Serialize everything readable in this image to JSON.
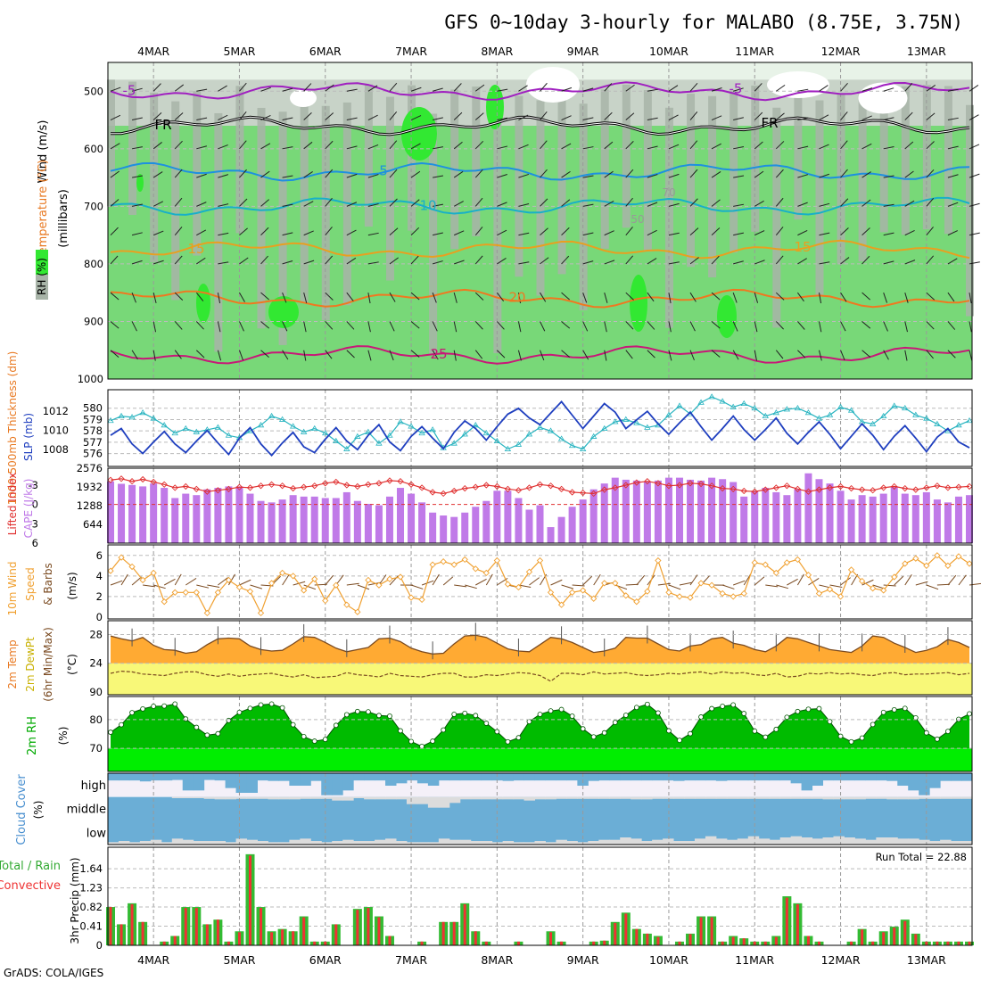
{
  "title": "GFS 0~10day 3-hourly for MALABO (8.75E, 3.75N)",
  "footer": "GrADS: COLA/IGES",
  "dates": [
    "4MAR",
    "5MAR",
    "6MAR",
    "7MAR",
    "8MAR",
    "9MAR",
    "10MAR",
    "11MAR",
    "12MAR",
    "13MAR"
  ],
  "colors": {
    "rh_light": "#e8f3e8",
    "rh_mid": "#c8d3c8",
    "rh_dark": "#a8b4a8",
    "rh_green": "#78d878",
    "rh_bright": "#32e832",
    "temp_purple": "#a020c0",
    "temp_black": "#000000",
    "temp_blue": "#1e90e0",
    "temp_cyan": "#18b0c8",
    "temp_orange": "#e8a020",
    "temp_dorange": "#f07820",
    "temp_magenta": "#c81878",
    "slp": "#1f3fbf",
    "thickness": "#28b4c0",
    "lifted": "#e03030",
    "cape": "#c07ae8",
    "wind": "#f0a030",
    "temp_fill": "#ffaa33",
    "dewpt_fill": "#f8f878",
    "rh2m": "#00bb00",
    "rh2m_light": "#00ee00",
    "cloud": "#6baed6",
    "precip_total": "#33bb33",
    "precip_conv": "#ee3333"
  },
  "upper_panel": {
    "ylabel_wind": "Wind (m/s)",
    "ylabel_temp": "Temperature (°C)",
    "ylabel_p": "(millibars)",
    "rh_label": "RH (%)",
    "p_ticks": [
      "500",
      "600",
      "700",
      "800",
      "900",
      "1000"
    ],
    "contours": [
      {
        "label": "-5",
        "level": 500
      },
      {
        "label": "FR",
        "level": 560
      },
      {
        "label": "5",
        "level": 640
      },
      {
        "label": "10",
        "level": 700
      },
      {
        "label": "15",
        "level": 775
      },
      {
        "label": "20",
        "level": 860
      },
      {
        "label": "25",
        "level": 958
      }
    ],
    "rh_shading_labels": [
      "50",
      "70"
    ]
  },
  "slp_panel": {
    "ylabel_thick": "1000-500mb Thickness (dm)",
    "ylabel_slp": "SLP (mb)",
    "left_ticks": [
      "580",
      "579",
      "578",
      "577",
      "576"
    ],
    "right_ticks": [
      "1012",
      "1010",
      "1008"
    ]
  },
  "cape_panel": {
    "ylabel_li": "Lifted Index",
    "ylabel_cape": "CAPE (J/kg)",
    "left_ticks": [
      "-3",
      "0",
      "3",
      "6"
    ],
    "right_ticks": [
      "2576",
      "1932",
      "1288",
      "644"
    ]
  },
  "wind_panel": {
    "ylabel_1": "10m Wind",
    "ylabel_2": "Speed",
    "ylabel_3": "& Barbs",
    "unit": "(m/s)",
    "ticks": [
      "6",
      "4",
      "2",
      "0"
    ]
  },
  "temp_panel": {
    "ylabel_1": "2m Temp",
    "ylabel_2": "2m DewPt",
    "ylabel_3": "(6hr Min/Max)",
    "unit": "(°C)",
    "ticks": [
      "28",
      "24",
      "90"
    ]
  },
  "rh_panel": {
    "ylabel": "2m RH",
    "unit": "(%)",
    "ticks": [
      "80",
      "70"
    ]
  },
  "cloud_panel": {
    "ylabel": "Cloud Cover",
    "unit": "(%)",
    "levels": [
      "high",
      "middle",
      "low"
    ]
  },
  "precip_panel": {
    "ylabel_1": "Total / Rain",
    "ylabel_2": "Convective",
    "ylabel_3": "3hr Precip (mm)",
    "ticks": [
      "1.64",
      "1.23",
      "0.82",
      "0.41",
      "0"
    ],
    "run_total": "Run Total = 22.88"
  },
  "chart_data": {
    "type": "meteogram",
    "x_start": "2022-03-03 12Z",
    "step_hours": 3,
    "n_steps": 81,
    "slp_mb": [
      1009.5,
      1010.2,
      1008.6,
      1007.6,
      1008.8,
      1009.9,
      1008.6,
      1007.7,
      1008.9,
      1010.0,
      1008.7,
      1007.5,
      1009.2,
      1010.3,
      1008.6,
      1007.4,
      1008.7,
      1009.8,
      1008.3,
      1007.7,
      1009.1,
      1010.3,
      1008.9,
      1008.0,
      1009.5,
      1010.6,
      1008.8,
      1007.9,
      1009.4,
      1010.4,
      1009.2,
      1008.1,
      1009.8,
      1011.0,
      1010.2,
      1009.0,
      1010.4,
      1011.7,
      1012.3,
      1011.3,
      1010.6,
      1011.8,
      1013.0,
      1011.6,
      1010.2,
      1011.5,
      1012.8,
      1011.9,
      1010.2,
      1011.1,
      1012.0,
      1010.7,
      1009.6,
      1010.8,
      1011.9,
      1010.4,
      1009.0,
      1010.2,
      1011.5,
      1010.1,
      1009.0,
      1010.1,
      1011.3,
      1009.7,
      1008.6,
      1009.8,
      1010.9,
      1009.6,
      1008.1,
      1009.4,
      1010.7,
      1009.5,
      1008.0,
      1009.4,
      1010.5,
      1009.2,
      1007.8,
      1009.3,
      1010.2,
      1008.8,
      1008.2
    ],
    "thickness_dm": [
      578.9,
      579.3,
      579.2,
      579.6,
      579.1,
      578.5,
      577.8,
      578.2,
      577.9,
      578.1,
      578.3,
      577.6,
      577.4,
      578.0,
      578.5,
      579.3,
      579.0,
      578.4,
      577.9,
      578.2,
      577.8,
      577.1,
      576.4,
      577.5,
      577.9,
      576.9,
      577.6,
      578.8,
      578.4,
      577.8,
      578.1,
      576.5,
      576.9,
      577.7,
      578.5,
      577.8,
      577.1,
      576.4,
      576.8,
      577.7,
      578.3,
      578.0,
      577.3,
      576.7,
      576.4,
      577.5,
      578.2,
      578.8,
      579.0,
      578.7,
      578.3,
      578.5,
      579.4,
      580.2,
      579.5,
      580.5,
      581.0,
      580.6,
      580.1,
      580.4,
      580.0,
      579.3,
      579.6,
      579.9,
      580.0,
      579.6,
      579.1,
      579.4,
      580.1,
      579.8,
      578.8,
      578.6,
      579.3,
      580.2,
      580.0,
      579.4,
      579.1,
      578.6,
      578.0,
      578.5,
      578.9
    ],
    "lifted_index": [
      -3.8,
      -4.0,
      -3.6,
      -3.9,
      -3.5,
      -3.1,
      -2.6,
      -2.8,
      -2.4,
      -2.0,
      -2.2,
      -2.4,
      -2.7,
      -2.6,
      -2.9,
      -3.1,
      -2.9,
      -2.5,
      -2.7,
      -2.9,
      -3.3,
      -3.5,
      -3.0,
      -2.8,
      -3.1,
      -3.3,
      -3.7,
      -3.6,
      -3.1,
      -2.6,
      -1.9,
      -1.7,
      -2.1,
      -2.5,
      -2.7,
      -3.0,
      -2.8,
      -2.4,
      -2.2,
      -2.6,
      -3.1,
      -2.9,
      -2.4,
      -1.9,
      -1.8,
      -1.7,
      -2.3,
      -2.6,
      -3.0,
      -3.4,
      -3.6,
      -3.3,
      -2.9,
      -3.0,
      -3.3,
      -3.2,
      -2.9,
      -2.5,
      -2.4,
      -2.1,
      -2.0,
      -2.3,
      -2.6,
      -2.9,
      -2.4,
      -2.0,
      -2.3,
      -2.6,
      -2.8,
      -2.5,
      -2.3,
      -2.2,
      -2.6,
      -2.8,
      -2.5,
      -2.3,
      -2.6,
      -2.9,
      -2.6,
      -2.7,
      -2.8
    ],
    "cape_jkg": [
      2120,
      2040,
      2000,
      1950,
      2050,
      1900,
      1550,
      1700,
      1650,
      1850,
      1900,
      1950,
      1950,
      1700,
      1450,
      1400,
      1500,
      1650,
      1600,
      1600,
      1550,
      1550,
      1750,
      1450,
      1350,
      1300,
      1600,
      1900,
      1700,
      1400,
      1050,
      950,
      900,
      1050,
      1250,
      1450,
      1800,
      1800,
      1550,
      1150,
      1300,
      550,
      900,
      1250,
      1500,
      1850,
      2050,
      2250,
      2180,
      2150,
      2120,
      2150,
      2250,
      2250,
      2180,
      2150,
      2250,
      2200,
      2100,
      1600,
      1800,
      1900,
      1750,
      1650,
      1850,
      2400,
      2200,
      2050,
      1800,
      1500,
      1650,
      1600,
      1700,
      1950,
      1700,
      1650,
      1750,
      1500,
      1400,
      1600,
      1650
    ],
    "wind_speed_ms": [
      4.5,
      5.8,
      4.9,
      3.6,
      4.3,
      1.5,
      2.4,
      2.4,
      2.4,
      0.4,
      2.4,
      3.6,
      2.9,
      2.5,
      0.4,
      3.3,
      4.3,
      4.0,
      2.6,
      3.7,
      1.6,
      3.1,
      1.2,
      0.5,
      3.6,
      3.1,
      3.7,
      3.9,
      1.9,
      1.7,
      5.1,
      5.4,
      5.1,
      5.6,
      4.7,
      4.3,
      5.5,
      3.2,
      2.9,
      4.4,
      5.5,
      2.4,
      1.2,
      2.4,
      2.6,
      1.8,
      3.3,
      3.3,
      2.1,
      1.5,
      2.5,
      5.5,
      2.4,
      2.0,
      1.9,
      3.3,
      3.1,
      2.3,
      2.0,
      2.3,
      5.3,
      5.1,
      4.3,
      5.3,
      5.6,
      4.1,
      2.3,
      2.7,
      2.0,
      4.6,
      3.5,
      2.8,
      2.6,
      3.9,
      5.2,
      5.7,
      5.0,
      6.0,
      5.0,
      5.9,
      5.2
    ],
    "temp_c": [
      27.8,
      27.4,
      27.1,
      27.6,
      26.5,
      25.9,
      25.8,
      25.4,
      25.6,
      26.6,
      27.4,
      27.5,
      27.4,
      26.4,
      25.9,
      25.7,
      25.8,
      26.7,
      27.7,
      27.6,
      26.9,
      26.1,
      25.6,
      25.9,
      26.2,
      27.4,
      27.5,
      27.0,
      26.1,
      25.6,
      25.3,
      25.4,
      26.7,
      27.8,
      27.9,
      27.6,
      26.8,
      26.0,
      25.7,
      25.6,
      26.6,
      27.6,
      27.4,
      26.9,
      26.2,
      25.5,
      25.7,
      26.1,
      27.6,
      27.5,
      27.5,
      26.7,
      25.9,
      25.7,
      26.4,
      26.6,
      27.4,
      27.6,
      26.8,
      26.5,
      25.9,
      25.6,
      26.4,
      27.6,
      27.4,
      26.9,
      26.4,
      25.9,
      25.7,
      25.5,
      26.4,
      27.8,
      27.6,
      26.8,
      26.2,
      25.5,
      25.8,
      26.3,
      27.3,
      26.9,
      26.2
    ],
    "dewpoint_c": [
      22.6,
      22.9,
      22.8,
      22.5,
      22.4,
      22.3,
      22.6,
      22.8,
      22.8,
      22.4,
      22.2,
      22.5,
      22.2,
      22.4,
      22.5,
      22.6,
      22.3,
      22.1,
      22.4,
      22.0,
      22.1,
      22.2,
      22.7,
      22.4,
      22.3,
      22.1,
      22.6,
      22.3,
      22.2,
      22.1,
      22.4,
      22.6,
      22.6,
      22.1,
      22.1,
      22.4,
      22.3,
      22.5,
      22.7,
      22.6,
      22.3,
      21.5,
      22.6,
      22.6,
      22.4,
      22.8,
      22.5,
      22.6,
      22.7,
      22.4,
      22.3,
      22.4,
      22.6,
      22.5,
      22.7,
      22.8,
      22.5,
      22.8,
      22.6,
      22.7,
      22.4,
      22.3,
      22.6,
      22.1,
      22.2,
      22.6,
      22.5,
      22.7,
      22.5,
      22.6,
      22.4,
      22.3,
      22.6,
      22.7,
      22.4,
      22.5,
      22.5,
      22.6,
      22.7,
      22.4,
      22.6
    ],
    "rh2m_pct": [
      75.6,
      78.2,
      82.4,
      83.7,
      84.6,
      84.7,
      85.4,
      80.2,
      77.3,
      74.6,
      75.1,
      79.7,
      82.5,
      83.9,
      85.1,
      85.4,
      84.1,
      78.2,
      74.1,
      72.5,
      73.1,
      78.0,
      81.7,
      82.8,
      82.7,
      81.4,
      81.2,
      76.1,
      72.4,
      70.7,
      72.5,
      76.4,
      81.8,
      82.2,
      81.4,
      78.7,
      75.8,
      72.3,
      73.7,
      79.3,
      81.8,
      83.0,
      83.5,
      81.2,
      76.8,
      74.0,
      75.4,
      79.0,
      81.5,
      84.2,
      85.3,
      82.3,
      76.1,
      72.8,
      75.1,
      80.9,
      83.8,
      84.6,
      85.1,
      82.1,
      76.0,
      73.9,
      76.6,
      80.8,
      82.8,
      83.6,
      83.8,
      79.3,
      74.2,
      72.3,
      73.6,
      78.3,
      82.5,
      83.4,
      83.9,
      80.6,
      75.4,
      73.2,
      75.9,
      80.1,
      82.0
    ],
    "cloud_high_pct": [
      8,
      8,
      8,
      12,
      8,
      8,
      6,
      50,
      50,
      6,
      8,
      40,
      60,
      60,
      8,
      10,
      10,
      30,
      30,
      10,
      70,
      70,
      50,
      8,
      8,
      8,
      30,
      20,
      8,
      20,
      30,
      8,
      8,
      8,
      8,
      8,
      8,
      10,
      8,
      8,
      8,
      8,
      8,
      8,
      30,
      10,
      8,
      8,
      8,
      8,
      8,
      8,
      8,
      10,
      8,
      8,
      8,
      10,
      8,
      8,
      8,
      8,
      8,
      8,
      20,
      50,
      30,
      8,
      8,
      8,
      8,
      8,
      8,
      10,
      30,
      50,
      70,
      40,
      10,
      10,
      10
    ],
    "cloud_mid_pct": [
      0,
      0,
      0,
      0,
      0,
      0,
      5,
      5,
      5,
      8,
      10,
      10,
      8,
      8,
      8,
      10,
      10,
      10,
      8,
      8,
      8,
      15,
      15,
      5,
      10,
      10,
      10,
      10,
      30,
      30,
      45,
      45,
      25,
      10,
      10,
      10,
      10,
      10,
      10,
      15,
      10,
      10,
      8,
      8,
      8,
      8,
      8,
      8,
      8,
      10,
      10,
      8,
      8,
      8,
      8,
      8,
      8,
      8,
      8,
      8,
      8,
      8,
      8,
      8,
      8,
      8,
      8,
      10,
      10,
      10,
      10,
      8,
      8,
      10,
      10,
      10,
      8,
      8,
      8,
      8,
      8
    ],
    "cloud_low_pct": [
      10,
      15,
      10,
      15,
      20,
      10,
      25,
      20,
      15,
      15,
      15,
      10,
      25,
      20,
      15,
      10,
      10,
      20,
      25,
      15,
      10,
      15,
      20,
      15,
      15,
      20,
      25,
      15,
      10,
      10,
      10,
      25,
      20,
      20,
      15,
      15,
      10,
      15,
      10,
      10,
      15,
      10,
      20,
      15,
      10,
      15,
      20,
      20,
      30,
      25,
      15,
      20,
      25,
      15,
      15,
      25,
      35,
      25,
      20,
      25,
      35,
      25,
      20,
      30,
      35,
      30,
      25,
      30,
      35,
      30,
      25,
      20,
      30,
      30,
      25,
      25,
      20,
      15,
      20,
      15,
      15
    ],
    "precip_total_mm": [
      0.82,
      0.45,
      0.9,
      0.5,
      0.0,
      0.08,
      0.2,
      0.82,
      0.82,
      0.45,
      0.55,
      0.08,
      0.3,
      1.95,
      0.82,
      0.3,
      0.35,
      0.3,
      0.62,
      0.08,
      0.08,
      0.45,
      0.0,
      0.78,
      0.82,
      0.62,
      0.2,
      0.0,
      0.0,
      0.08,
      0.0,
      0.5,
      0.5,
      0.9,
      0.3,
      0.08,
      0.0,
      0.0,
      0.08,
      0.0,
      0.0,
      0.3,
      0.08,
      0.0,
      0.0,
      0.08,
      0.1,
      0.5,
      0.7,
      0.35,
      0.25,
      0.2,
      0.0,
      0.08,
      0.25,
      0.62,
      0.62,
      0.08,
      0.2,
      0.15,
      0.08,
      0.08,
      0.2,
      1.05,
      0.9,
      0.2,
      0.08,
      0.0,
      0.0,
      0.08,
      0.35,
      0.08,
      0.3,
      0.4,
      0.55,
      0.25,
      0.08,
      0.08,
      0.08,
      0.08,
      0.08
    ],
    "precip_conv_mm": [
      0.82,
      0.45,
      0.88,
      0.5,
      0.0,
      0.08,
      0.2,
      0.8,
      0.8,
      0.45,
      0.55,
      0.08,
      0.28,
      1.92,
      0.8,
      0.28,
      0.34,
      0.3,
      0.6,
      0.08,
      0.08,
      0.45,
      0.0,
      0.76,
      0.8,
      0.6,
      0.2,
      0.0,
      0.0,
      0.08,
      0.0,
      0.5,
      0.5,
      0.88,
      0.3,
      0.08,
      0.0,
      0.0,
      0.08,
      0.0,
      0.0,
      0.28,
      0.08,
      0.0,
      0.0,
      0.08,
      0.1,
      0.48,
      0.68,
      0.35,
      0.25,
      0.18,
      0.0,
      0.08,
      0.24,
      0.6,
      0.6,
      0.08,
      0.18,
      0.15,
      0.08,
      0.08,
      0.18,
      1.02,
      0.88,
      0.2,
      0.08,
      0.0,
      0.0,
      0.08,
      0.34,
      0.08,
      0.28,
      0.38,
      0.52,
      0.24,
      0.08,
      0.08,
      0.08,
      0.08,
      0.08
    ]
  }
}
